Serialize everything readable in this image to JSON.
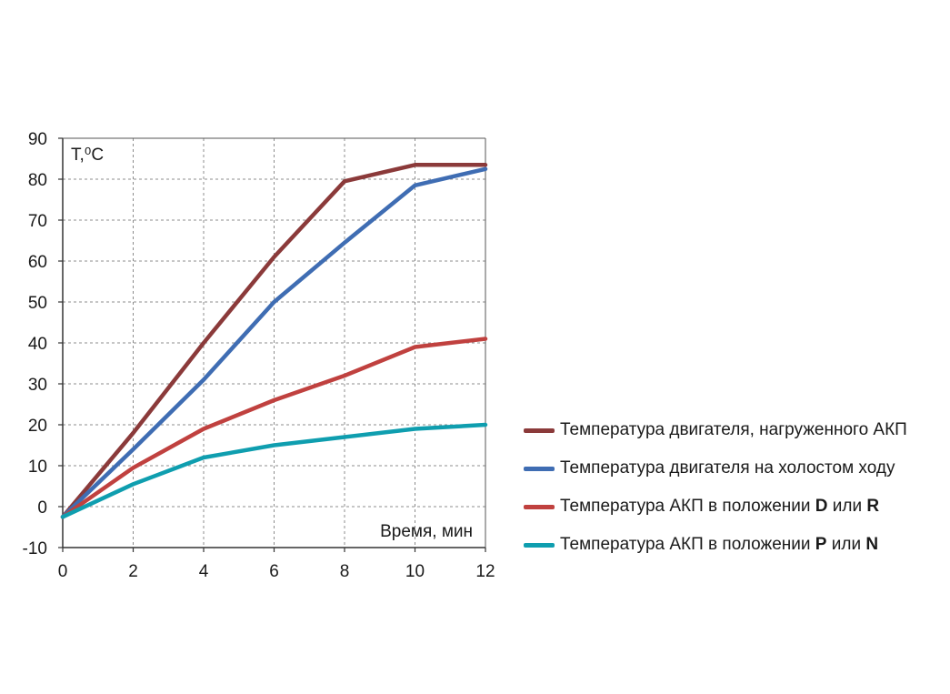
{
  "chart_data": {
    "type": "line",
    "x": [
      0,
      2,
      4,
      6,
      8,
      10,
      12
    ],
    "xticks": [
      "0",
      "2",
      "4",
      "6",
      "8",
      "10",
      "12"
    ],
    "yticks": [
      "-10",
      "0",
      "10",
      "20",
      "30",
      "40",
      "50",
      "60",
      "70",
      "80",
      "90"
    ],
    "xlim": [
      0,
      12
    ],
    "ylim": [
      -10,
      90
    ],
    "xlabel": "Время, мин",
    "ylabel": "T,⁰С",
    "grid": true,
    "legend_position": "right",
    "series": [
      {
        "name": "Температура двигателя,  нагруженного АКП",
        "color": "#8B3A3A",
        "values": [
          -2.5,
          18,
          40,
          61,
          79.5,
          83.5,
          83.5
        ]
      },
      {
        "name": "Температура двигателя на холостом ходу",
        "color": "#3F6DB3",
        "values": [
          -2.5,
          14,
          31,
          50,
          64.5,
          78.5,
          82.5
        ]
      },
      {
        "name_parts": [
          "Температура АКП в положении ",
          "D",
          " или ",
          "R"
        ],
        "color": "#C0413F",
        "values": [
          -2.5,
          9.5,
          19,
          26,
          32,
          39,
          41
        ]
      },
      {
        "name_parts": [
          "Температура АКП в положении ",
          "P",
          " или ",
          "N"
        ],
        "color": "#0F9EAF",
        "values": [
          -2.5,
          5.5,
          12,
          15,
          17,
          19,
          20
        ]
      }
    ]
  }
}
